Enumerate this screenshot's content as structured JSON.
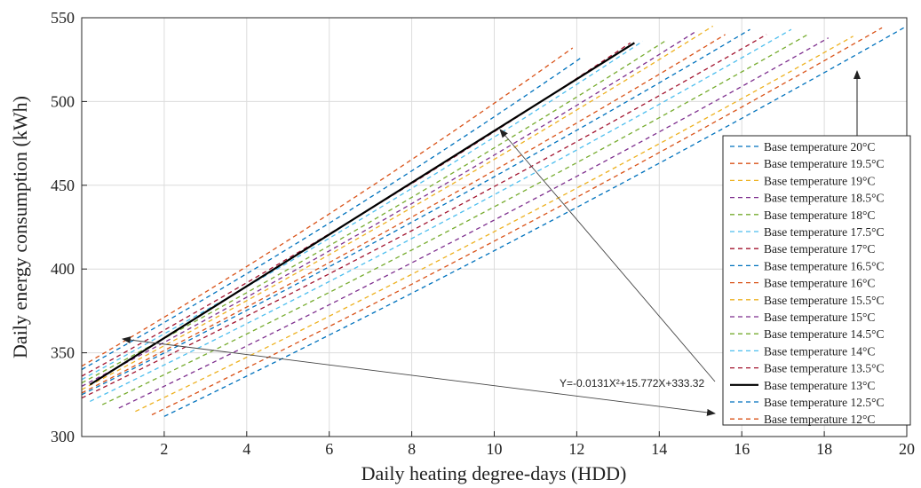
{
  "chart_data": {
    "type": "line",
    "xlabel": "Daily heating degree-days (HDD)",
    "ylabel": "Daily energy consumption (kWh)",
    "xlim": [
      0,
      20
    ],
    "ylim": [
      300,
      550
    ],
    "xticks": [
      2,
      4,
      6,
      8,
      10,
      12,
      14,
      16,
      18,
      20
    ],
    "yticks": [
      300,
      350,
      400,
      450,
      500,
      550
    ],
    "grid": true,
    "legend_position": "right",
    "annotation": "Y=-0.0131X²+15.772X+333.32",
    "series": [
      {
        "name": "Base temperature 20°C",
        "color": "#0072BD",
        "style": "dashed",
        "x": [
          2.0,
          20.0
        ],
        "y": [
          312,
          545
        ]
      },
      {
        "name": "Base temperature 19.5°C",
        "color": "#D95319",
        "style": "dashed",
        "x": [
          1.7,
          19.4
        ],
        "y": [
          313,
          544
        ]
      },
      {
        "name": "Base temperature 19°C",
        "color": "#EDB120",
        "style": "dashed",
        "x": [
          1.3,
          18.7
        ],
        "y": [
          315,
          539
        ]
      },
      {
        "name": "Base temperature 18.5°C",
        "color": "#7E2F8E",
        "style": "dashed",
        "x": [
          0.9,
          18.1
        ],
        "y": [
          317,
          538
        ]
      },
      {
        "name": "Base temperature 18°C",
        "color": "#77AC30",
        "style": "dashed",
        "x": [
          0.5,
          17.6
        ],
        "y": [
          319,
          540
        ]
      },
      {
        "name": "Base temperature 17.5°C",
        "color": "#4DBEEE",
        "style": "dashed",
        "x": [
          0.2,
          17.2
        ],
        "y": [
          321,
          543
        ]
      },
      {
        "name": "Base temperature 17°C",
        "color": "#A2142F",
        "style": "dashed",
        "x": [
          0.0,
          16.6
        ],
        "y": [
          323,
          540
        ]
      },
      {
        "name": "Base temperature 16.5°C",
        "color": "#0072BD",
        "style": "dashed",
        "x": [
          0.0,
          16.2
        ],
        "y": [
          325,
          543
        ]
      },
      {
        "name": "Base temperature 16°C",
        "color": "#D95319",
        "style": "dashed",
        "x": [
          0.0,
          15.6
        ],
        "y": [
          326,
          540
        ]
      },
      {
        "name": "Base temperature 15.5°C",
        "color": "#EDB120",
        "style": "dashed",
        "x": [
          0.0,
          15.3
        ],
        "y": [
          328,
          545
        ]
      },
      {
        "name": "Base temperature 15°C",
        "color": "#7E2F8E",
        "style": "dashed",
        "x": [
          0.0,
          14.9
        ],
        "y": [
          330,
          542
        ]
      },
      {
        "name": "Base temperature 14.5°C",
        "color": "#77AC30",
        "style": "dashed",
        "x": [
          0.0,
          14.2
        ],
        "y": [
          332,
          537
        ]
      },
      {
        "name": "Base temperature 14°C",
        "color": "#4DBEEE",
        "style": "dashed",
        "x": [
          0.0,
          13.6
        ],
        "y": [
          334,
          536
        ]
      },
      {
        "name": "Base temperature 13.5°C",
        "color": "#A2142F",
        "style": "dashed",
        "x": [
          0.0,
          13.3
        ],
        "y": [
          336,
          535
        ]
      },
      {
        "name": "Base temperature 13°C",
        "color": "#000000",
        "style": "solid",
        "x": [
          0.2,
          13.4
        ],
        "y": [
          331,
          535
        ]
      },
      {
        "name": "Base temperature 12.5°C",
        "color": "#0072BD",
        "style": "dashed",
        "x": [
          0.0,
          12.1
        ],
        "y": [
          340,
          526
        ]
      },
      {
        "name": "Base temperature 12°C",
        "color": "#D95319",
        "style": "dashed",
        "x": [
          0.0,
          11.9
        ],
        "y": [
          342,
          532
        ]
      }
    ]
  }
}
